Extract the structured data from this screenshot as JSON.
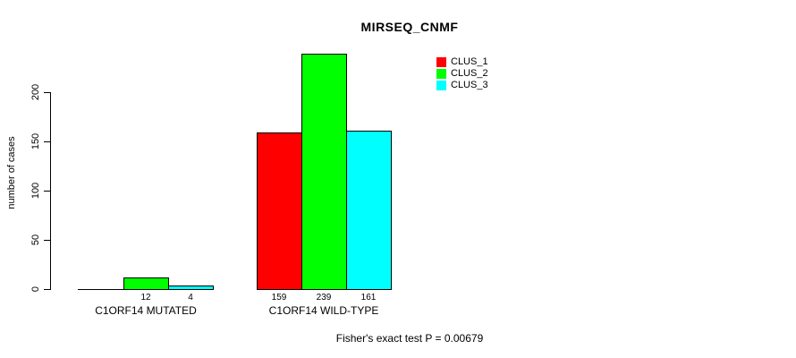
{
  "title": "MIRSEQ_CNMF",
  "ylabel": "number of cases",
  "footer": "Fisher's exact test P = 0.00679",
  "chart_data": {
    "type": "bar",
    "title": "MIRSEQ_CNMF",
    "xlabel": "",
    "ylabel": "number of cases",
    "categories": [
      "C1ORF14 MUTATED",
      "C1ORF14 WILD-TYPE"
    ],
    "series": [
      {
        "name": "CLUS_1",
        "color": "#ff0000",
        "values": [
          0,
          159
        ],
        "bar_labels": [
          "",
          "159"
        ]
      },
      {
        "name": "CLUS_2",
        "color": "#00ff00",
        "values": [
          12,
          239
        ],
        "bar_labels": [
          "12",
          "239"
        ]
      },
      {
        "name": "CLUS_3",
        "color": "#00ffff",
        "values": [
          4,
          161
        ],
        "bar_labels": [
          "4",
          "161"
        ]
      }
    ],
    "yticks": [
      0,
      50,
      100,
      150,
      200
    ],
    "ylim": [
      0,
      240
    ],
    "grid": false,
    "legend_position": "top-right",
    "annotation": "Fisher's exact test P = 0.00679"
  }
}
